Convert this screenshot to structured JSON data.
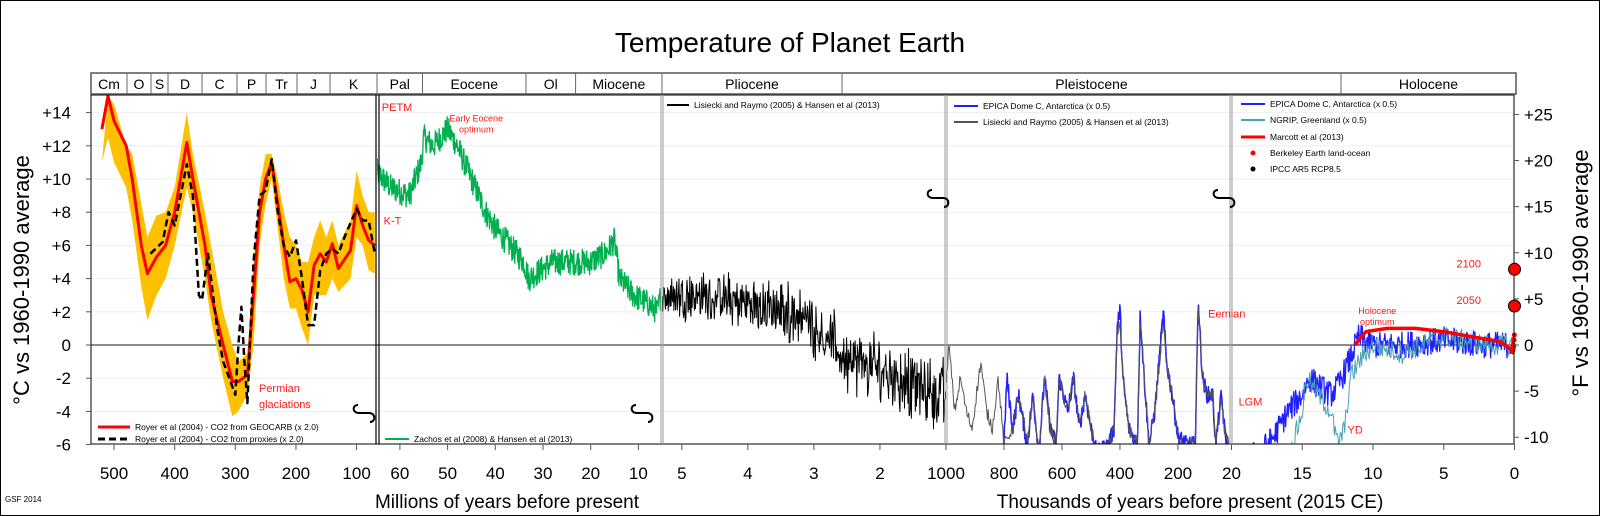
{
  "footer": "GSF 2014",
  "chart_data": {
    "type": "line",
    "title": "Temperature of Planet Earth",
    "ylabel_left": "°C vs 1960-1990 average",
    "ylabel_right": "°F vs 1960-1990 average",
    "ylim_celsius": [
      -6,
      15
    ],
    "grid": "horizontal",
    "yticks_left": [
      {
        "value": 14,
        "label": "+14"
      },
      {
        "value": 12,
        "label": "+12"
      },
      {
        "value": 10,
        "label": "+10"
      },
      {
        "value": 8,
        "label": "+8"
      },
      {
        "value": 6,
        "label": "+6"
      },
      {
        "value": 4,
        "label": "+4"
      },
      {
        "value": 2,
        "label": "+2"
      },
      {
        "value": 0,
        "label": "0"
      },
      {
        "value": -2,
        "label": "-2"
      },
      {
        "value": -4,
        "label": "-4"
      },
      {
        "value": -6,
        "label": "-6"
      }
    ],
    "yticks_right_fahrenheit": [
      {
        "value": 25,
        "label": "+25"
      },
      {
        "value": 20,
        "label": "+20"
      },
      {
        "value": 15,
        "label": "+15"
      },
      {
        "value": 10,
        "label": "+10"
      },
      {
        "value": 5,
        "label": "+5"
      },
      {
        "value": 0,
        "label": "0"
      },
      {
        "value": -5,
        "label": "-5"
      },
      {
        "value": -10,
        "label": "-10"
      }
    ],
    "xlabel_millions": "Millions of years before present",
    "xlabel_thousands": "Thousands of years before present (2015 CE)",
    "periods": [
      "Cm",
      "O",
      "S",
      "D",
      "C",
      "P",
      "Tr",
      "J",
      "K",
      "Pal",
      "Eocene",
      "Ol",
      "Miocene",
      "Pliocene",
      "Pleistocene",
      "Holocene"
    ],
    "panels": [
      {
        "unit": "Ma",
        "xlim": [
          538,
          68
        ],
        "xticks": [
          500,
          400,
          300,
          200,
          100
        ],
        "band": {
          "color": "#FFC000",
          "x": [
            520,
            510,
            500,
            480,
            470,
            455,
            445,
            430,
            415,
            400,
            380,
            370,
            350,
            340,
            320,
            305,
            295,
            280,
            270,
            260,
            250,
            240,
            230,
            220,
            210,
            200,
            190,
            180,
            170,
            160,
            150,
            140,
            130,
            110,
            100,
            90,
            80,
            70
          ],
          "upper": [
            11,
            15,
            14.5,
            12,
            11.5,
            8.5,
            6.5,
            7.8,
            8,
            9.5,
            14,
            11.5,
            8,
            6,
            2,
            0,
            -1,
            -0.5,
            5,
            9.5,
            11.5,
            11.5,
            10,
            8,
            6.5,
            6,
            5,
            5,
            6.5,
            7.5,
            6.5,
            7.5,
            6,
            7.5,
            10.5,
            9,
            8,
            8
          ],
          "lower": [
            11,
            12.5,
            11,
            9.5,
            7.5,
            3.5,
            1.5,
            3,
            4,
            6,
            9.5,
            8,
            4,
            1.5,
            -2,
            -4.3,
            -4,
            -3,
            0,
            6,
            8.5,
            10,
            7,
            4,
            2.2,
            2.2,
            1,
            0,
            3,
            3,
            3,
            4,
            3.2,
            4,
            6.5,
            6,
            4.5,
            4.3
          ]
        },
        "series": [
          {
            "name": "Royer et al (2004) - CO2 from GEOCARB (x 2.0)",
            "color": "#ff0000",
            "style": "solid",
            "x": [
              520,
              510,
              500,
              480,
              470,
              455,
              445,
              430,
              415,
              400,
              380,
              370,
              350,
              340,
              320,
              305,
              295,
              280,
              270,
              260,
              250,
              240,
              230,
              220,
              210,
              200,
              190,
              180,
              170,
              160,
              150,
              140,
              130,
              110,
              100,
              90,
              80,
              70
            ],
            "y": [
              13,
              15,
              13.5,
              12,
              10,
              6,
              4.3,
              5.3,
              6,
              8,
              12.2,
              10,
              6,
              3,
              0,
              -2.2,
              -2.2,
              -1.8,
              3,
              8,
              10,
              11,
              8.5,
              6,
              3.8,
              4,
              3.3,
              2,
              4.8,
              5.5,
              5,
              6.1,
              4.6,
              5.7,
              8.4,
              7.2,
              6.3,
              6
            ]
          },
          {
            "name": "Royer et al (2004) - CO2 from proxies (x 2.0)",
            "color": "#000000",
            "style": "dashed",
            "x": [
              440,
              420,
              410,
              400,
              380,
              370,
              360,
              355,
              345,
              330,
              320,
              310,
              300,
              295,
              290,
              285,
              280,
              270,
              260,
              250,
              240,
              230,
              220,
              210,
              200,
              190,
              180,
              170,
              160,
              150,
              140,
              130,
              120,
              100,
              90,
              80,
              70
            ],
            "y": [
              5.5,
              6.2,
              8,
              7.2,
              10.9,
              9,
              3,
              2.7,
              5.5,
              1,
              -1,
              -2,
              -3,
              0,
              2.3,
              -1,
              -3.5,
              5,
              9,
              9.3,
              11.2,
              8,
              6,
              5.3,
              6.3,
              4,
              1.2,
              1.2,
              4.5,
              5.5,
              5.8,
              5.5,
              6.5,
              8.2,
              7.5,
              7.5,
              5.5
            ]
          }
        ],
        "annotations": [
          {
            "lines": [
              "Permian",
              "glaciations"
            ],
            "x": 261,
            "y": -2.6
          }
        ]
      },
      {
        "unit": "Ma",
        "xlim": [
          64.8,
          5.05
        ],
        "xticks": [
          60,
          50,
          40,
          30,
          20,
          10
        ],
        "series": [
          {
            "name": "Zachos et al (2008) & Hansen et al (2013)",
            "color": "#00b050",
            "style": "solid",
            "x": [
              65,
              62,
              58,
              55.5,
              55,
              53,
              50,
              48,
              45,
              42,
              40,
              37,
              34,
              33,
              28,
              23,
              20,
              17,
              15,
              14,
              11,
              8,
              6,
              5.3
            ],
            "y": [
              10.5,
              9.5,
              9,
              11,
              12.5,
              12,
              13,
              12,
              10,
              8,
              7,
              6,
              5,
              4,
              5,
              5,
              5,
              5.5,
              6.3,
              4,
              3,
              2.5,
              2,
              3
            ]
          }
        ],
        "annotations": [
          {
            "lines": [
              "PETM"
            ],
            "x": 63.8,
            "y": 14.35,
            "size": "large"
          },
          {
            "lines": [
              "Early Eocene",
              "optimum"
            ],
            "x": 44,
            "y": 13.7,
            "size": "small"
          },
          {
            "lines": [
              "K-T"
            ],
            "x": 63.4,
            "y": 7.5,
            "size": "large"
          }
        ]
      },
      {
        "unit": "Ma",
        "xlim": [
          5.3,
          1.0
        ],
        "xticks": [
          5,
          4,
          3,
          2
        ],
        "series": [
          {
            "name": "Lisiecki and Raymo (2005) & Hansen et al (2013)",
            "color": "#000000",
            "style": "solid",
            "x": [
              5.3,
              4.8,
              4.5,
              4,
              3.5,
              3.2,
              3,
              2.7,
              2.5,
              2.2,
              2,
              1.7,
              1.5,
              1.2,
              1.0
            ],
            "y": [
              3,
              3,
              2.8,
              2.5,
              2,
              1.8,
              1.2,
              0,
              -1,
              -1.3,
              -1.5,
              -2,
              -2.5,
              -2.8,
              -3
            ]
          }
        ]
      },
      {
        "unit": "ka",
        "xlim": [
          1000,
          17
        ],
        "xticks": [
          1000,
          800,
          600,
          400,
          200
        ],
        "series": [
          {
            "name": "EPICA Dome C, Antarctica (x 0.5)",
            "color": "#1f1fff",
            "style": "solid",
            "x": [
              800,
              790,
              770,
              750,
              720,
              700,
              680,
              660,
              640,
              620,
              610,
              580,
              560,
              540,
              520,
              500,
              480,
              440,
              420,
              410,
              400,
              390,
              370,
              340,
              330,
              320,
              300,
              280,
              250,
              240,
              220,
              200,
              170,
              140,
              130,
              125,
              115,
              100,
              80,
              70,
              50,
              40,
              20
            ],
            "y": [
              -6,
              -2,
              -5,
              -3,
              -6,
              -3,
              -6.5,
              -2,
              -5,
              -6,
              -2,
              -4,
              -2,
              -5,
              -3,
              -5,
              -6.5,
              -6,
              -5,
              1,
              2.2,
              -2,
              -5,
              -6,
              2,
              -1,
              -6,
              -4,
              2,
              -1,
              -3,
              -5.5,
              -6,
              -6,
              3,
              1,
              -2,
              -3,
              -3,
              -6,
              -3,
              -5,
              -7
            ]
          },
          {
            "name": "Lisiecki and Raymo (2005) & Hansen et al (2013)",
            "color": "#555555",
            "style": "solid",
            "x": [
              1000,
              990,
              970,
              950,
              930,
              910,
              880,
              860,
              840,
              820,
              800,
              770,
              750,
              720,
              700,
              680,
              660,
              640,
              620,
              610,
              580,
              560,
              540,
              520,
              500,
              480,
              440,
              420,
              410,
              400,
              390,
              370,
              340,
              330,
              320,
              300,
              280,
              250,
              240,
              220,
              200,
              170,
              140,
              130,
              125,
              115,
              100,
              80,
              70,
              50,
              40,
              20
            ],
            "y": [
              -2.5,
              0,
              -4,
              -2,
              -4,
              -5,
              -1,
              -4,
              -5,
              -2,
              -6,
              -5,
              -3,
              -6,
              -3,
              -6.5,
              -2,
              -5,
              -6,
              -2,
              -4,
              -2,
              -5,
              -3,
              -5,
              -6.5,
              -6,
              -5,
              0.5,
              1.5,
              -2,
              -5,
              -6,
              1.5,
              -1,
              -6,
              -4,
              1.5,
              -1,
              -3,
              -5.5,
              -6,
              -6,
              2.5,
              1,
              -2,
              -3,
              -3,
              -6,
              -3,
              -5,
              -6.5
            ]
          }
        ],
        "annotations": [
          {
            "lines": [
              "Eemian"
            ],
            "x": 96,
            "y": 1.9,
            "size": "large"
          }
        ]
      },
      {
        "unit": "ka",
        "xlim": [
          20,
          0
        ],
        "xticks": [
          20,
          15,
          10,
          5,
          0
        ],
        "series": [
          {
            "name": "EPICA Dome C, Antarctica (x 0.5)",
            "color": "#1f1fff",
            "style": "solid",
            "x": [
              20,
              18,
              17,
              16,
              15,
              14.5,
              13,
              12.5,
              11.7,
              11,
              10,
              8,
              5,
              2,
              0
            ],
            "y": [
              -7,
              -6.5,
              -5.5,
              -4,
              -3,
              -2,
              -3,
              -2.5,
              -1,
              0.5,
              0,
              0,
              0.3,
              0,
              0
            ]
          },
          {
            "name": "NGRIP, Greenland (x 0.5)",
            "color": "#4aa3b5",
            "style": "solid",
            "x": [
              20,
              18,
              16,
              15,
              14.7,
              13,
              12.5,
              12,
              11.6,
              11,
              10,
              8,
              5,
              2,
              0
            ],
            "y": [
              -8,
              -8.5,
              -7,
              -4,
              -2,
              -4,
              -6,
              -5,
              -2,
              -1,
              0,
              -0.5,
              0.5,
              0,
              0
            ]
          },
          {
            "name": "Marcott et al (2013)",
            "color": "#ff0000",
            "style": "solid",
            "x": [
              11.3,
              10.5,
              9,
              7,
              5,
              3,
              1,
              0.2,
              0
            ],
            "y": [
              0,
              0.8,
              1,
              1,
              0.8,
              0.5,
              0.2,
              -0.3,
              0.6
            ]
          },
          {
            "name": "Berkeley Earth land-ocean",
            "color": "#ff0000",
            "style": "dots",
            "x": [
              0.15,
              0.12,
              0.1,
              0.08,
              0.05,
              0.03,
              0.01
            ],
            "y": [
              -0.4,
              -0.2,
              -0.3,
              0,
              -0.1,
              0.3,
              0.6
            ]
          },
          {
            "name": "IPCC AR5 RCP8.5",
            "color": "#ff0000",
            "style": "markers",
            "x": [
              -0.035,
              -0.085
            ],
            "y": [
              2.35,
              4.56
            ],
            "labels": [
              "2050",
              "2100"
            ]
          }
        ],
        "annotations": [
          {
            "lines": [
              "LGM"
            ],
            "x": 19.5,
            "y": -3.4,
            "size": "large"
          },
          {
            "lines": [
              "YD"
            ],
            "x": 11.8,
            "y": -5.1,
            "size": "large"
          },
          {
            "lines": [
              "Holocene",
              "optimum"
            ],
            "x": 9.7,
            "y": 2.1,
            "size": "small"
          }
        ]
      }
    ]
  }
}
